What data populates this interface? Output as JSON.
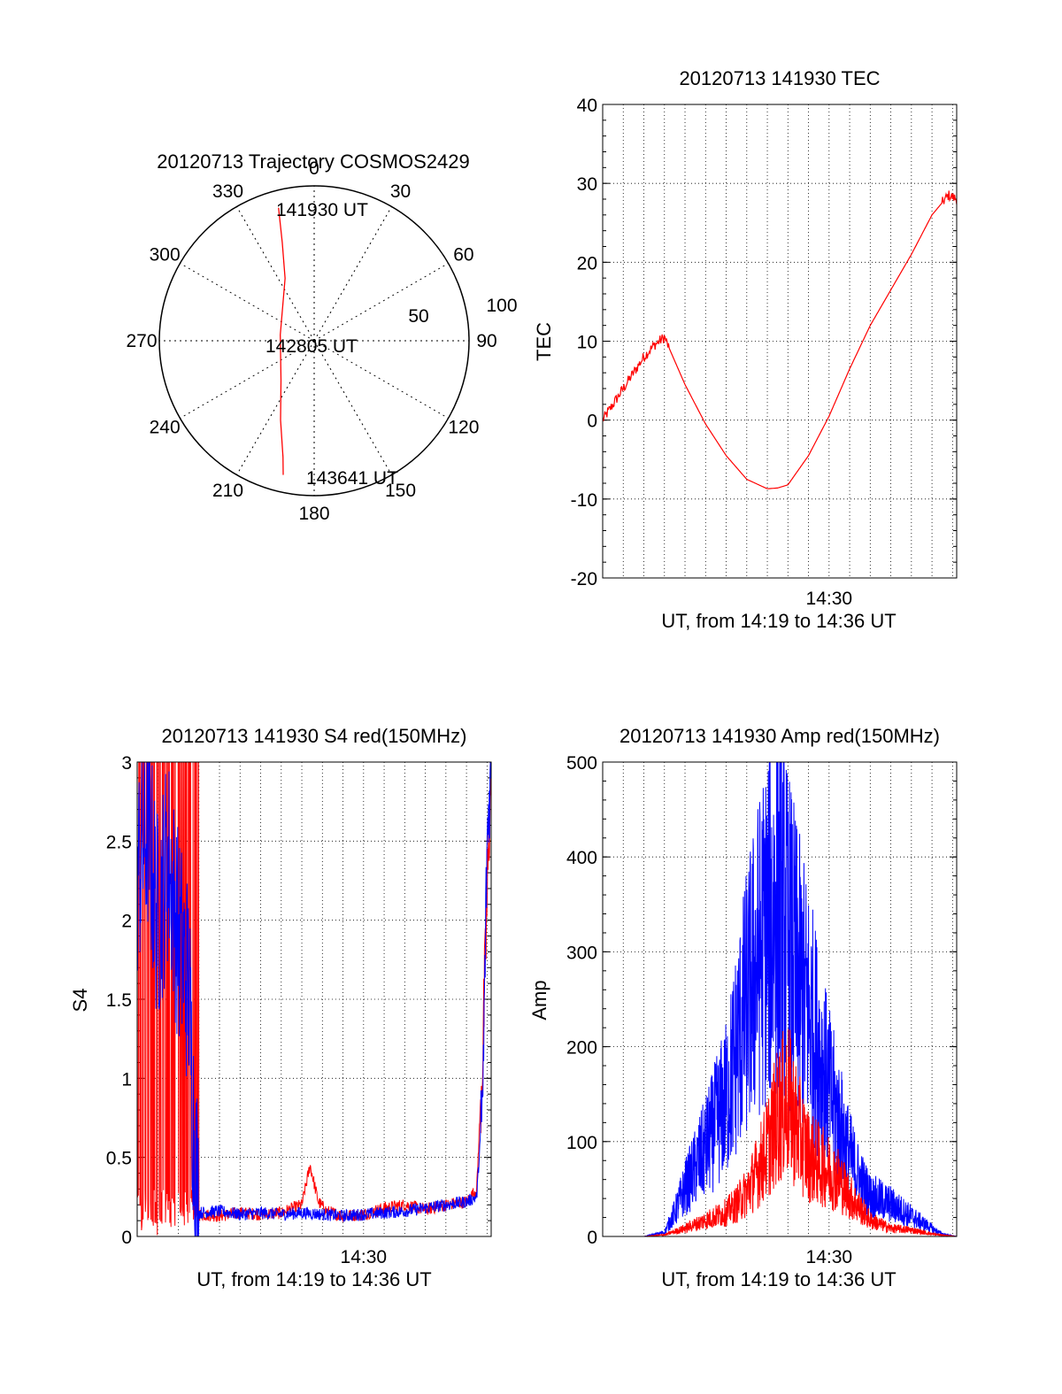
{
  "colors": {
    "red": "#ff0000",
    "blue": "#0000ff",
    "axis": "#000000",
    "grid": "#000000"
  },
  "chart_data": [
    {
      "id": "trajectory",
      "type": "polar",
      "title": "20120713 Trajectory COSMOS2429",
      "angle_labels": [
        "0",
        "30",
        "60",
        "90",
        "120",
        "150",
        "180",
        "210",
        "240",
        "270",
        "300",
        "330"
      ],
      "radius_labels": [
        "50",
        "100"
      ],
      "elevation_rings": [
        50,
        100
      ],
      "grid": true,
      "series": [
        {
          "color": "red",
          "points": [
            {
              "az": 345,
              "el": 10
            },
            {
              "az": 342,
              "el": 30
            },
            {
              "az": 335,
              "el": 50
            },
            {
              "az": 280,
              "el": 70
            },
            {
              "az": 220,
              "el": 60
            },
            {
              "az": 203,
              "el": 40
            },
            {
              "az": 195,
              "el": 20
            },
            {
              "az": 193,
              "el": 10
            }
          ]
        }
      ],
      "annotations": [
        {
          "text": "141930 UT",
          "az": 345,
          "el": 10
        },
        {
          "text": "142805 UT",
          "az": 0,
          "el": 90
        },
        {
          "text": "143641 UT",
          "az": 193,
          "el": 10
        }
      ]
    },
    {
      "id": "tec",
      "type": "line",
      "title": "20120713 141930 TEC",
      "xlabel": "UT, from 14:19 to 14:36 UT",
      "ylabel": "TEC",
      "xlim": [
        0,
        17.2
      ],
      "ylim": [
        -20,
        40
      ],
      "yticks": [
        -20,
        -10,
        0,
        10,
        20,
        30,
        40
      ],
      "xtick_labels": [
        {
          "label": "14:30",
          "x": 11
        }
      ],
      "grid": true,
      "series": [
        {
          "color": "red",
          "x": [
            0,
            0.5,
            1.0,
            1.5,
            2.0,
            2.5,
            3.0,
            4.0,
            5.0,
            6.0,
            7.0,
            8.0,
            8.5,
            9.0,
            10.0,
            11.0,
            12.0,
            13.0,
            14.0,
            15.0,
            16.0,
            16.8,
            17.2
          ],
          "y": [
            0,
            2,
            4,
            6,
            8,
            9.5,
            10.5,
            4.5,
            -0.5,
            -4.5,
            -7.5,
            -8.7,
            -8.6,
            -8.2,
            -4.5,
            0.5,
            6.5,
            12,
            16.5,
            21,
            26,
            28.5,
            28
          ]
        }
      ]
    },
    {
      "id": "s4",
      "type": "line",
      "title": "20120713 141930 S4 red(150MHz)",
      "xlabel": "UT, from 14:19 to 14:36 UT",
      "ylabel": "S4",
      "xlim": [
        0,
        17.2
      ],
      "ylim": [
        0,
        3
      ],
      "yticks": [
        0,
        0.5,
        1,
        1.5,
        2,
        2.5,
        3
      ],
      "ytick_labels": [
        "0",
        "0.5",
        "1",
        "1.5",
        "2",
        "2.5",
        "3"
      ],
      "xtick_labels": [
        {
          "label": "14:30",
          "x": 11
        }
      ],
      "grid": true,
      "series": [
        {
          "color": "red",
          "x": [
            0.0,
            0.6,
            1.2,
            1.8,
            2.2,
            2.7,
            3.0,
            4.0,
            5.0,
            6.0,
            7.0,
            8.0,
            8.4,
            8.8,
            9.2,
            10.0,
            11.0,
            12.0,
            13.0,
            14.0,
            15.0,
            16.0,
            16.5,
            16.8,
            17.2
          ],
          "y": [
            3.0,
            0.0,
            3.0,
            0.0,
            3.0,
            0.5,
            0.14,
            0.13,
            0.15,
            0.14,
            0.15,
            0.2,
            0.45,
            0.22,
            0.16,
            0.13,
            0.14,
            0.18,
            0.2,
            0.17,
            0.2,
            0.22,
            0.3,
            1.2,
            3.0
          ]
        },
        {
          "color": "blue",
          "x": [
            0.0,
            0.5,
            1.0,
            1.5,
            2.0,
            2.5,
            2.8,
            3.0,
            4.0,
            5.0,
            6.0,
            7.0,
            8.0,
            9.0,
            10.0,
            11.0,
            12.0,
            13.0,
            14.0,
            15.0,
            16.0,
            16.5,
            16.8,
            17.0,
            17.2
          ],
          "y": [
            2.3,
            2.6,
            2.0,
            2.4,
            1.9,
            1.6,
            0.5,
            0.15,
            0.16,
            0.14,
            0.15,
            0.14,
            0.15,
            0.14,
            0.13,
            0.14,
            0.15,
            0.16,
            0.18,
            0.2,
            0.22,
            0.25,
            0.9,
            2.5,
            3.0
          ]
        }
      ]
    },
    {
      "id": "amp",
      "type": "line",
      "title": "20120713 141930 Amp red(150MHz)",
      "xlabel": "UT, from 14:19 to 14:36 UT",
      "ylabel": "Amp",
      "xlim": [
        0,
        17.2
      ],
      "ylim": [
        0,
        500
      ],
      "yticks": [
        0,
        100,
        200,
        300,
        400,
        500
      ],
      "xtick_labels": [
        {
          "label": "14:30",
          "x": 11
        }
      ],
      "grid": true,
      "series": [
        {
          "color": "blue",
          "x": [
            0,
            1,
            2,
            3,
            3.5,
            4,
            5,
            6,
            6.5,
            7,
            7.5,
            8,
            8.5,
            9,
            9.5,
            10,
            10.5,
            11,
            11.5,
            12,
            12.5,
            13,
            14,
            15,
            16,
            16.5,
            17.2
          ],
          "y": [
            0,
            0,
            0,
            5,
            30,
            60,
            110,
            170,
            230,
            290,
            340,
            380,
            410,
            370,
            320,
            280,
            230,
            180,
            140,
            100,
            70,
            50,
            40,
            25,
            10,
            3,
            0
          ]
        },
        {
          "color": "red",
          "x": [
            0,
            1,
            2,
            3,
            4,
            5,
            6,
            6.5,
            7,
            7.5,
            8,
            8.5,
            9,
            9.5,
            10,
            10.5,
            11,
            11.5,
            12,
            13,
            14,
            15,
            16,
            17.2
          ],
          "y": [
            0,
            0,
            0,
            2,
            10,
            20,
            30,
            40,
            55,
            80,
            110,
            150,
            170,
            130,
            100,
            90,
            80,
            70,
            50,
            20,
            10,
            8,
            3,
            0
          ]
        }
      ]
    }
  ]
}
